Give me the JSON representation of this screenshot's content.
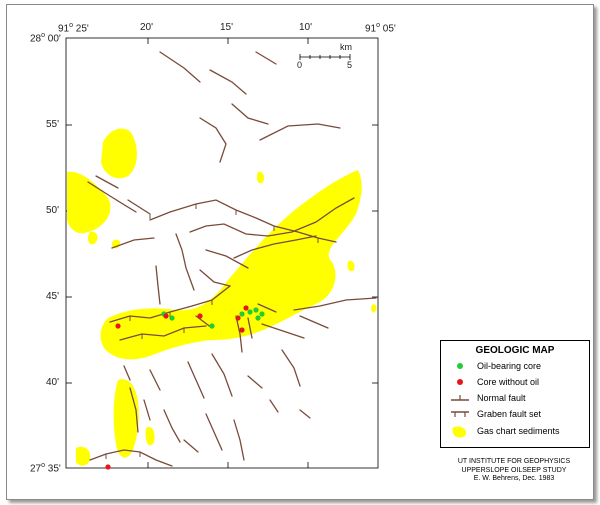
{
  "map": {
    "lon_labels": [
      {
        "deg": "91",
        "min": " 25'"
      },
      {
        "deg": "",
        "min": "20'"
      },
      {
        "deg": "",
        "min": "15'"
      },
      {
        "deg": "",
        "min": "10'"
      },
      {
        "deg": "91",
        "min": " 05'"
      }
    ],
    "lat_labels": [
      {
        "deg": "28",
        "min": " 00'"
      },
      {
        "deg": "",
        "min": "55'"
      },
      {
        "deg": "",
        "min": "50'"
      },
      {
        "deg": "",
        "min": "45'"
      },
      {
        "deg": "",
        "min": "40'"
      },
      {
        "deg": "27",
        "min": " 35'"
      }
    ],
    "scale": {
      "unit": "km",
      "start": "0",
      "end": "5"
    }
  },
  "legend": {
    "title": "GEOLOGIC MAP",
    "items": [
      {
        "label": "Oil-bearing core",
        "symbol": "green-dot-icon",
        "color": "#22cc33"
      },
      {
        "label": "Core without oil",
        "symbol": "red-dot-icon",
        "color": "#e8161b"
      },
      {
        "label": "Normal fault",
        "symbol": "normal-fault-icon",
        "color": "#7a4a3a"
      },
      {
        "label": "Graben fault set",
        "symbol": "graben-fault-icon",
        "color": "#7a4a3a"
      },
      {
        "label": "Gas chart sediments",
        "symbol": "gas-sediment-icon",
        "color": "#ffff00"
      }
    ]
  },
  "credit": {
    "line1": "UT INSTITUTE FOR GEOPHYSICS",
    "line2": "UPPERSLOPE OILSEEP STUDY",
    "line3": "E. W. Behrens, Dec. 1983"
  },
  "colors": {
    "sediment": "#ffff00",
    "fault": "#7a4a3a",
    "oil_core": "#22cc33",
    "dry_core": "#e8161b"
  }
}
